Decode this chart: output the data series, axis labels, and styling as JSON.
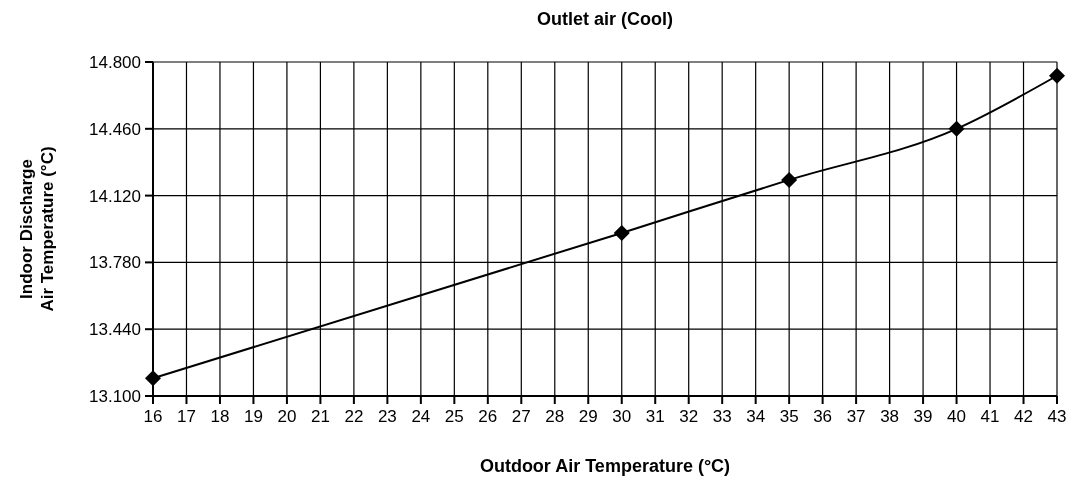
{
  "chart_data": {
    "type": "line",
    "title": "Outlet air (Cool)",
    "xlabel": "Outdoor Air Temperature (°C)",
    "ylabel": "Indoor Discharge Air Temperature (°C)",
    "x": [
      16,
      30,
      35,
      40,
      43
    ],
    "series": [
      {
        "color": "#000000",
        "values": [
          13.19,
          13.93,
          14.2,
          14.46,
          14.73
        ]
      }
    ],
    "xlim": [
      16,
      43
    ],
    "xticks": [
      16,
      17,
      18,
      19,
      20,
      21,
      22,
      23,
      24,
      25,
      26,
      27,
      28,
      29,
      30,
      31,
      32,
      33,
      34,
      35,
      36,
      37,
      38,
      39,
      40,
      41,
      42,
      43
    ],
    "ylim": [
      13.1,
      14.8
    ],
    "yticks": [
      {
        "value": 13.1,
        "label": "13.100"
      },
      {
        "value": 13.44,
        "label": "13.440"
      },
      {
        "value": 13.78,
        "label": "13.780"
      },
      {
        "value": 14.12,
        "label": "14.120"
      },
      {
        "value": 14.46,
        "label": "14.460"
      },
      {
        "value": 14.8,
        "label": "14.800"
      }
    ],
    "grid": true,
    "marker": "diamond",
    "line_style": "solid"
  }
}
